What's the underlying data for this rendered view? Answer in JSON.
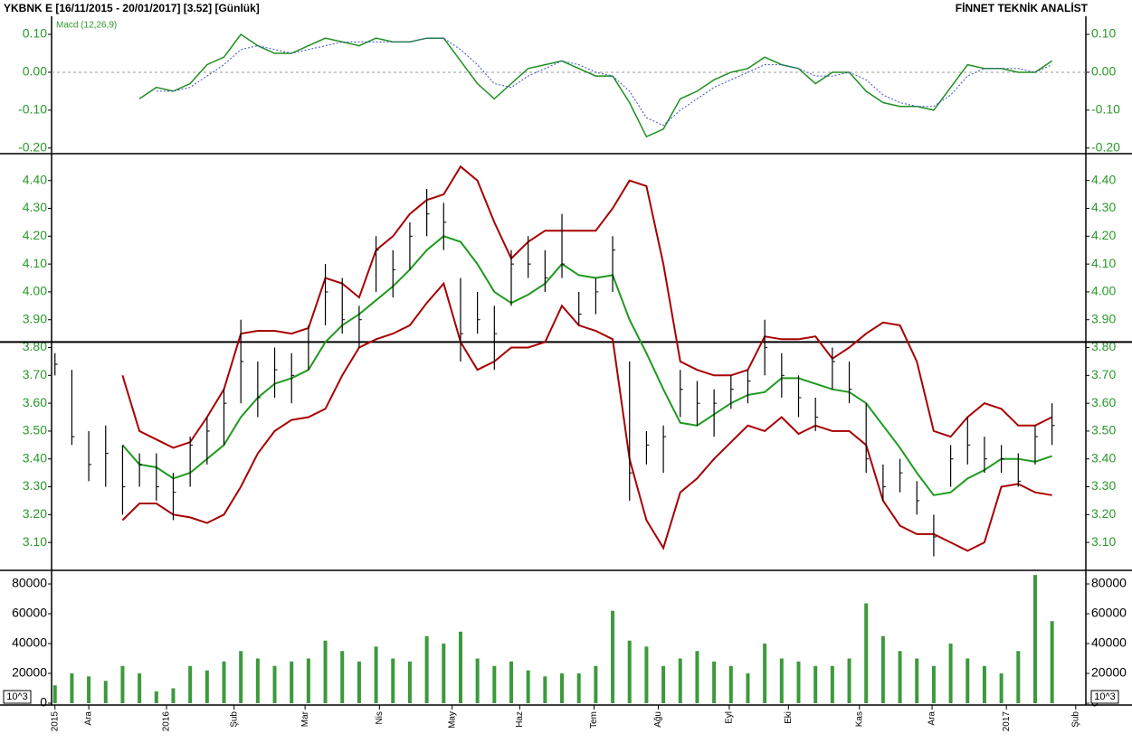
{
  "header": {
    "title": "YKBNK E  [16/11/2015 - 20/01/2017]  [3.52]  [Günlük]",
    "source": "FİNNET TEKNİK ANALİST"
  },
  "chart_data": [
    {
      "type": "line",
      "label": "Macd (12,26,9)",
      "ylim": [
        -0.21,
        0.143
      ],
      "yticks": [
        {
          "value": 0.1,
          "label": "0.10"
        },
        {
          "value": 0,
          "label": "0.00"
        },
        {
          "value": -0.1,
          "label": "-0.10"
        },
        {
          "value": -0.2,
          "label": "-0.20"
        }
      ],
      "zero_line": 0,
      "series": [
        {
          "color": "#1f8f1f",
          "dashed": false,
          "values": [
            null,
            null,
            null,
            null,
            null,
            -0.07,
            -0.04,
            -0.05,
            -0.03,
            0.02,
            0.04,
            0.1,
            0.07,
            0.05,
            0.05,
            0.07,
            0.09,
            0.08,
            0.07,
            0.09,
            0.08,
            0.08,
            0.09,
            0.09,
            0.03,
            -0.03,
            -0.07,
            -0.03,
            0.01,
            0.02,
            0.03,
            0.01,
            -0.01,
            -0.01,
            -0.08,
            -0.17,
            -0.15,
            -0.07,
            -0.05,
            -0.02,
            0.0,
            0.01,
            0.04,
            0.02,
            0.01,
            -0.03,
            0.0,
            0.0,
            -0.05,
            -0.08,
            -0.09,
            -0.09,
            -0.1,
            -0.04,
            0.02,
            0.01,
            0.01,
            0.0,
            0.0,
            0.03
          ]
        },
        {
          "color": "#3a4fc8",
          "dashed": true,
          "values": [
            null,
            null,
            null,
            null,
            null,
            null,
            -0.05,
            -0.05,
            -0.04,
            -0.01,
            0.02,
            0.06,
            0.07,
            0.06,
            0.05,
            0.06,
            0.07,
            0.08,
            0.08,
            0.08,
            0.08,
            0.08,
            0.09,
            0.09,
            0.06,
            0.02,
            -0.03,
            -0.04,
            -0.01,
            0.01,
            0.03,
            0.02,
            0.0,
            -0.01,
            -0.05,
            -0.12,
            -0.14,
            -0.1,
            -0.07,
            -0.04,
            -0.02,
            0.0,
            0.02,
            0.02,
            0.01,
            -0.01,
            -0.01,
            0.0,
            -0.02,
            -0.06,
            -0.08,
            -0.09,
            -0.09,
            -0.06,
            -0.01,
            0.01,
            0.01,
            0.01,
            0.0,
            0.02
          ]
        }
      ]
    },
    {
      "type": "ohlc",
      "color": "#000000",
      "ylim": [
        3.003,
        4.49
      ],
      "yticks": [
        {
          "value": 3.1,
          "label": "3.10"
        },
        {
          "value": 3.2,
          "label": "3.20"
        },
        {
          "value": 3.3,
          "label": "3.30"
        },
        {
          "value": 3.4,
          "label": "3.40"
        },
        {
          "value": 3.5,
          "label": "3.50"
        },
        {
          "value": 3.6,
          "label": "3.60"
        },
        {
          "value": 3.7,
          "label": "3.70"
        },
        {
          "value": 3.8,
          "label": "3.80"
        },
        {
          "value": 3.9,
          "label": "3.90"
        },
        {
          "value": 4.0,
          "label": "4.00"
        },
        {
          "value": 4.1,
          "label": "4.10"
        },
        {
          "value": 4.2,
          "label": "4.20"
        },
        {
          "value": 4.3,
          "label": "4.30"
        },
        {
          "value": 4.4,
          "label": "4.40"
        }
      ],
      "reference_line": 3.82,
      "high": [
        3.78,
        3.72,
        3.5,
        3.52,
        3.45,
        3.42,
        3.42,
        3.35,
        3.48,
        3.55,
        3.65,
        3.9,
        3.75,
        3.8,
        3.78,
        3.88,
        4.1,
        4.05,
        3.95,
        4.2,
        4.15,
        4.25,
        4.37,
        4.32,
        4.05,
        4.0,
        3.95,
        4.15,
        4.2,
        4.15,
        4.28,
        4.0,
        4.05,
        4.2,
        3.75,
        3.5,
        3.52,
        3.72,
        3.68,
        3.65,
        3.7,
        3.72,
        3.9,
        3.78,
        3.7,
        3.62,
        3.8,
        3.75,
        3.6,
        3.38,
        3.4,
        3.32,
        3.2,
        3.45,
        3.55,
        3.48,
        3.45,
        3.42,
        3.52,
        3.6
      ],
      "low": [
        3.7,
        3.45,
        3.32,
        3.3,
        3.2,
        3.3,
        3.25,
        3.18,
        3.3,
        3.38,
        3.45,
        3.6,
        3.55,
        3.62,
        3.6,
        3.72,
        3.88,
        3.85,
        3.8,
        4.0,
        3.98,
        4.08,
        4.2,
        4.15,
        3.75,
        3.85,
        3.72,
        3.95,
        4.05,
        4.0,
        4.05,
        3.88,
        3.92,
        4.0,
        3.25,
        3.38,
        3.35,
        3.55,
        3.52,
        3.48,
        3.58,
        3.6,
        3.7,
        3.62,
        3.55,
        3.5,
        3.65,
        3.6,
        3.35,
        3.25,
        3.28,
        3.2,
        3.05,
        3.3,
        3.38,
        3.35,
        3.35,
        3.3,
        3.38,
        3.45
      ],
      "close": [
        3.74,
        3.48,
        3.38,
        3.42,
        3.3,
        3.38,
        3.3,
        3.28,
        3.45,
        3.5,
        3.6,
        3.75,
        3.62,
        3.72,
        3.7,
        3.82,
        4.0,
        3.9,
        3.9,
        4.15,
        4.08,
        4.2,
        4.28,
        4.25,
        3.85,
        3.9,
        3.85,
        4.1,
        4.1,
        4.05,
        4.1,
        3.92,
        4.0,
        4.15,
        3.35,
        3.45,
        3.48,
        3.65,
        3.6,
        3.6,
        3.65,
        3.68,
        3.8,
        3.7,
        3.62,
        3.55,
        3.75,
        3.65,
        3.4,
        3.3,
        3.35,
        3.25,
        3.12,
        3.4,
        3.45,
        3.4,
        3.4,
        3.32,
        3.48,
        3.52
      ],
      "overlays": [
        {
          "color": "#a80000",
          "values": [
            null,
            null,
            null,
            null,
            3.7,
            3.5,
            3.47,
            3.44,
            3.46,
            3.55,
            3.65,
            3.85,
            3.86,
            3.86,
            3.85,
            3.87,
            4.05,
            4.03,
            3.98,
            4.15,
            4.2,
            4.28,
            4.33,
            4.35,
            4.45,
            4.4,
            4.25,
            4.12,
            4.18,
            4.22,
            4.22,
            4.22,
            4.22,
            4.3,
            4.4,
            4.38,
            4.1,
            3.75,
            3.72,
            3.7,
            3.7,
            3.72,
            3.84,
            3.83,
            3.83,
            3.84,
            3.76,
            3.8,
            3.85,
            3.89,
            3.88,
            3.75,
            3.5,
            3.48,
            3.55,
            3.6,
            3.58,
            3.52,
            3.52,
            3.55
          ]
        },
        {
          "color": "#1f9a1f",
          "values": [
            null,
            null,
            null,
            null,
            3.45,
            3.38,
            3.37,
            3.33,
            3.35,
            3.4,
            3.45,
            3.55,
            3.62,
            3.67,
            3.69,
            3.72,
            3.82,
            3.88,
            3.92,
            3.97,
            4.02,
            4.08,
            4.15,
            4.2,
            4.18,
            4.1,
            4.0,
            3.96,
            3.99,
            4.03,
            4.1,
            4.06,
            4.05,
            4.06,
            3.9,
            3.78,
            3.65,
            3.53,
            3.52,
            3.56,
            3.6,
            3.63,
            3.64,
            3.69,
            3.69,
            3.67,
            3.65,
            3.64,
            3.6,
            3.52,
            3.44,
            3.35,
            3.27,
            3.28,
            3.33,
            3.36,
            3.4,
            3.4,
            3.39,
            3.41
          ]
        },
        {
          "color": "#a80000",
          "values": [
            null,
            null,
            null,
            null,
            3.18,
            3.24,
            3.24,
            3.2,
            3.19,
            3.17,
            3.2,
            3.3,
            3.42,
            3.5,
            3.54,
            3.55,
            3.58,
            3.7,
            3.8,
            3.83,
            3.85,
            3.88,
            3.96,
            4.03,
            3.82,
            3.72,
            3.75,
            3.8,
            3.8,
            3.82,
            3.95,
            3.88,
            3.86,
            3.83,
            3.4,
            3.18,
            3.08,
            3.28,
            3.33,
            3.4,
            3.46,
            3.52,
            3.5,
            3.55,
            3.49,
            3.52,
            3.5,
            3.5,
            3.45,
            3.25,
            3.16,
            3.13,
            3.13,
            3.1,
            3.07,
            3.1,
            3.3,
            3.31,
            3.28,
            3.27
          ]
        }
      ]
    },
    {
      "type": "bar",
      "color": "#3c9a3c",
      "unit_label": "10^3",
      "ylim": [
        0,
        88500
      ],
      "yticks": [
        0,
        20000,
        40000,
        60000,
        80000
      ],
      "xlim": [
        -0.2,
        61
      ],
      "xticks": [
        {
          "value": 0,
          "label": "2015"
        },
        {
          "value": 2,
          "label": "Ara"
        },
        {
          "value": 6.6,
          "label": "2016"
        },
        {
          "value": 10.6,
          "label": "Şub"
        },
        {
          "value": 14.8,
          "label": "Mar"
        },
        {
          "value": 19.2,
          "label": "Nis"
        },
        {
          "value": 23.5,
          "label": "May"
        },
        {
          "value": 27.5,
          "label": "Haz"
        },
        {
          "value": 31.9,
          "label": "Tem"
        },
        {
          "value": 35.7,
          "label": "Ağu"
        },
        {
          "value": 39.9,
          "label": "Eyl"
        },
        {
          "value": 43.4,
          "label": "Eki"
        },
        {
          "value": 47.6,
          "label": "Kas"
        },
        {
          "value": 51.9,
          "label": "Ara"
        },
        {
          "value": 56.3,
          "label": "2017"
        },
        {
          "value": 60.4,
          "label": "Şub"
        }
      ],
      "values": [
        12000,
        20000,
        18000,
        15000,
        25000,
        20000,
        8000,
        10000,
        25000,
        22000,
        28000,
        35000,
        30000,
        25000,
        28000,
        30000,
        42000,
        35000,
        28000,
        38000,
        30000,
        28000,
        45000,
        40000,
        48000,
        30000,
        25000,
        28000,
        22000,
        18000,
        20000,
        20000,
        25000,
        62000,
        42000,
        38000,
        25000,
        30000,
        35000,
        28000,
        25000,
        20000,
        40000,
        30000,
        28000,
        25000,
        25000,
        30000,
        67000,
        45000,
        35000,
        30000,
        25000,
        40000,
        30000,
        25000,
        20000,
        35000,
        86000,
        55000
      ]
    }
  ]
}
